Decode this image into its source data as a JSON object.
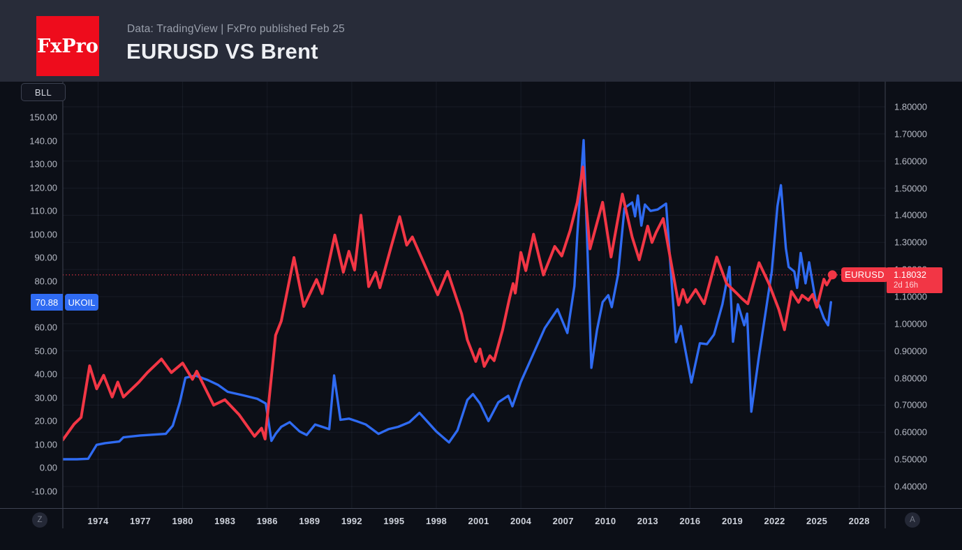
{
  "header": {
    "logo_text": "FxPro",
    "subtitle": "Data: TradingView | FxPro published Feb 25",
    "title": "EURUSD VS Brent"
  },
  "chart": {
    "unit_label": "BLL",
    "left_axis_ticks": [
      "150.00",
      "140.00",
      "130.00",
      "120.00",
      "110.00",
      "100.00",
      "90.00",
      "80.00",
      "70.00",
      "60.00",
      "50.00",
      "40.00",
      "30.00",
      "20.00",
      "10.00",
      "0.00",
      "-10.00"
    ],
    "right_axis_ticks": [
      "1.80000",
      "1.70000",
      "1.60000",
      "1.50000",
      "1.40000",
      "1.30000",
      "1.20000",
      "1.10000",
      "1.00000",
      "0.90000",
      "0.80000",
      "0.70000",
      "0.60000",
      "0.50000",
      "0.40000"
    ],
    "x_axis_ticks": [
      "1974",
      "1977",
      "1980",
      "1983",
      "1986",
      "1989",
      "1992",
      "1995",
      "1998",
      "2001",
      "2004",
      "2007",
      "2010",
      "2013",
      "2016",
      "2019",
      "2022",
      "2025",
      "2028"
    ],
    "price_badges": {
      "ukoil": {
        "value": "70.88",
        "label": "UKOIL",
        "color": "#2F6BF2"
      },
      "eurusd": {
        "label": "EURUSD",
        "value": "1.18032",
        "countdown": "2d 16h",
        "color": "#F23645"
      }
    },
    "zoom_button": "Z",
    "auto_button": "A",
    "colors": {
      "eurusd_red": "#F23645",
      "ukoil_blue": "#2F6BF2",
      "logo_red": "#EE0C1C"
    }
  },
  "chart_data": {
    "type": "line",
    "title": "EURUSD VS Brent",
    "legend_position": "none",
    "grid": {
      "horizontal_step_right_axis": 0.1,
      "vertical_years": [
        1974,
        1980,
        1986,
        1992,
        1998,
        2004,
        2010,
        2016,
        2022,
        2028
      ]
    },
    "x_axis": {
      "min": 1971.5,
      "max": 2029.85,
      "tick_years": [
        1974,
        1977,
        1980,
        1983,
        1986,
        1989,
        1992,
        1995,
        1998,
        2001,
        2004,
        2007,
        2010,
        2013,
        2016,
        2019,
        2022,
        2025,
        2028
      ]
    },
    "left_axis": {
      "label": "BLL",
      "min": -10,
      "max": 150,
      "tick_step": 10
    },
    "right_axis": {
      "min": 0.4,
      "max": 1.8,
      "tick_step": 0.1
    },
    "dotted_price_line": {
      "axis": "right",
      "value": 1.18032
    },
    "series": [
      {
        "name": "UKOIL",
        "axis": "left",
        "color": "#2F6BF2",
        "last_value": 70.88,
        "points": [
          [
            1971.5,
            3.6
          ],
          [
            1972.5,
            3.6
          ],
          [
            1973.3,
            3.8
          ],
          [
            1973.9,
            9.8
          ],
          [
            1974.5,
            10.5
          ],
          [
            1975.5,
            11.2
          ],
          [
            1975.8,
            13
          ],
          [
            1977,
            13.8
          ],
          [
            1978.8,
            14.5
          ],
          [
            1979.3,
            18
          ],
          [
            1979.8,
            28
          ],
          [
            1980.2,
            38.5
          ],
          [
            1980.9,
            39.5
          ],
          [
            1981.8,
            37.5
          ],
          [
            1982.5,
            35.5
          ],
          [
            1983.2,
            32.5
          ],
          [
            1984.3,
            31
          ],
          [
            1985.3,
            29.5
          ],
          [
            1985.9,
            27.5
          ],
          [
            1986.3,
            11.5
          ],
          [
            1986.6,
            14.5
          ],
          [
            1987,
            17.5
          ],
          [
            1987.6,
            19.5
          ],
          [
            1988.3,
            15.5
          ],
          [
            1988.8,
            14
          ],
          [
            1989.4,
            18.5
          ],
          [
            1989.9,
            17.5
          ],
          [
            1990.4,
            16.5
          ],
          [
            1990.75,
            39.5
          ],
          [
            1991.2,
            20.5
          ],
          [
            1991.8,
            21
          ],
          [
            1992.4,
            19.8
          ],
          [
            1993,
            18.5
          ],
          [
            1993.9,
            14.5
          ],
          [
            1994.6,
            16.5
          ],
          [
            1995.3,
            17.5
          ],
          [
            1996.1,
            19.5
          ],
          [
            1996.8,
            23.5
          ],
          [
            1997.4,
            19.5
          ],
          [
            1998,
            15.5
          ],
          [
            1998.9,
            10.8
          ],
          [
            1999.5,
            16
          ],
          [
            2000.2,
            29
          ],
          [
            2000.6,
            31.5
          ],
          [
            2001.1,
            27.5
          ],
          [
            2001.7,
            20
          ],
          [
            2002.4,
            28
          ],
          [
            2003.1,
            30.8
          ],
          [
            2003.4,
            26.3
          ],
          [
            2004,
            36.8
          ],
          [
            2004.6,
            44.9
          ],
          [
            2005.1,
            51.7
          ],
          [
            2005.7,
            59.8
          ],
          [
            2006.6,
            67.9
          ],
          [
            2007.3,
            57.7
          ],
          [
            2007.8,
            77.8
          ],
          [
            2008,
            99.6
          ],
          [
            2008.45,
            140.3
          ],
          [
            2008.7,
            98
          ],
          [
            2009,
            42.8
          ],
          [
            2009.4,
            58.9
          ],
          [
            2009.8,
            70.9
          ],
          [
            2010.2,
            73.9
          ],
          [
            2010.45,
            68.8
          ],
          [
            2010.9,
            82.8
          ],
          [
            2011.35,
            111.2
          ],
          [
            2011.9,
            113.6
          ],
          [
            2012.1,
            107.7
          ],
          [
            2012.3,
            116.6
          ],
          [
            2012.55,
            103.7
          ],
          [
            2012.8,
            112.7
          ],
          [
            2013.2,
            110
          ],
          [
            2013.7,
            110.6
          ],
          [
            2014.3,
            113.1
          ],
          [
            2015,
            53.8
          ],
          [
            2015.35,
            60.7
          ],
          [
            2016.1,
            36.5
          ],
          [
            2016.7,
            53.3
          ],
          [
            2017.2,
            52.9
          ],
          [
            2017.7,
            57
          ],
          [
            2018.3,
            70
          ],
          [
            2018.8,
            86
          ],
          [
            2019.05,
            54
          ],
          [
            2019.4,
            70
          ],
          [
            2019.85,
            61
          ],
          [
            2020.05,
            66
          ],
          [
            2020.35,
            24
          ],
          [
            2020.9,
            48
          ],
          [
            2021.5,
            72
          ],
          [
            2021.8,
            84
          ],
          [
            2022.2,
            112
          ],
          [
            2022.45,
            121
          ],
          [
            2022.8,
            94
          ],
          [
            2023,
            86
          ],
          [
            2023.4,
            84
          ],
          [
            2023.6,
            77
          ],
          [
            2023.85,
            92
          ],
          [
            2024.2,
            79
          ],
          [
            2024.45,
            88
          ],
          [
            2024.9,
            72
          ],
          [
            2025.2,
            69
          ],
          [
            2025.5,
            64
          ],
          [
            2025.8,
            61
          ],
          [
            2026,
            70.88
          ]
        ]
      },
      {
        "name": "EURUSD",
        "axis": "right",
        "color": "#F23645",
        "last_value": 1.18032,
        "end_dot": true,
        "points": [
          [
            1971.5,
            0.572
          ],
          [
            1972.3,
            0.63
          ],
          [
            1972.8,
            0.655
          ],
          [
            1973.4,
            0.845
          ],
          [
            1973.9,
            0.76
          ],
          [
            1974.4,
            0.81
          ],
          [
            1975,
            0.73
          ],
          [
            1975.4,
            0.785
          ],
          [
            1975.8,
            0.73
          ],
          [
            1976.9,
            0.785
          ],
          [
            1977.5,
            0.82
          ],
          [
            1978.5,
            0.87
          ],
          [
            1979.2,
            0.82
          ],
          [
            1980,
            0.855
          ],
          [
            1980.7,
            0.795
          ],
          [
            1981,
            0.825
          ],
          [
            1982.2,
            0.7
          ],
          [
            1983,
            0.72
          ],
          [
            1984,
            0.665
          ],
          [
            1985.1,
            0.585
          ],
          [
            1985.6,
            0.615
          ],
          [
            1985.85,
            0.575
          ],
          [
            1986.6,
            0.958
          ],
          [
            1987,
            1.01
          ],
          [
            1987.9,
            1.244
          ],
          [
            1988.6,
            1.064
          ],
          [
            1989.5,
            1.163
          ],
          [
            1989.9,
            1.111
          ],
          [
            1990.8,
            1.327
          ],
          [
            1991.4,
            1.19
          ],
          [
            1991.8,
            1.267
          ],
          [
            1992.2,
            1.198
          ],
          [
            1992.65,
            1.4
          ],
          [
            1993.2,
            1.137
          ],
          [
            1993.7,
            1.19
          ],
          [
            1994,
            1.133
          ],
          [
            1994.8,
            1.285
          ],
          [
            1995.4,
            1.395
          ],
          [
            1995.9,
            1.29
          ],
          [
            1996.3,
            1.32
          ],
          [
            1997.4,
            1.19
          ],
          [
            1998.1,
            1.107
          ],
          [
            1998.8,
            1.193
          ],
          [
            1999.8,
            1.036
          ],
          [
            2000.2,
            0.941
          ],
          [
            2000.8,
            0.861
          ],
          [
            2001.1,
            0.907
          ],
          [
            2001.4,
            0.843
          ],
          [
            2001.8,
            0.882
          ],
          [
            2002.1,
            0.864
          ],
          [
            2002.7,
            0.977
          ],
          [
            2003.2,
            1.096
          ],
          [
            2003.45,
            1.148
          ],
          [
            2003.6,
            1.113
          ],
          [
            2004,
            1.263
          ],
          [
            2004.35,
            1.196
          ],
          [
            2004.9,
            1.33
          ],
          [
            2005.6,
            1.18
          ],
          [
            2006.4,
            1.285
          ],
          [
            2006.9,
            1.25
          ],
          [
            2007.5,
            1.345
          ],
          [
            2008,
            1.448
          ],
          [
            2008.4,
            1.578
          ],
          [
            2008.9,
            1.276
          ],
          [
            2009.8,
            1.448
          ],
          [
            2010.4,
            1.246
          ],
          [
            2011.2,
            1.478
          ],
          [
            2011.9,
            1.319
          ],
          [
            2012.4,
            1.236
          ],
          [
            2013,
            1.36
          ],
          [
            2013.3,
            1.3
          ],
          [
            2013.6,
            1.337
          ],
          [
            2014.1,
            1.388
          ],
          [
            2015.2,
            1.069
          ],
          [
            2015.5,
            1.126
          ],
          [
            2015.8,
            1.079
          ],
          [
            2016.4,
            1.126
          ],
          [
            2017,
            1.074
          ],
          [
            2017.9,
            1.246
          ],
          [
            2018.6,
            1.148
          ],
          [
            2019.3,
            1.113
          ],
          [
            2019.7,
            1.092
          ],
          [
            2020.1,
            1.074
          ],
          [
            2020.9,
            1.225
          ],
          [
            2021.6,
            1.148
          ],
          [
            2022.3,
            1.053
          ],
          [
            2022.7,
            0.978
          ],
          [
            2023.2,
            1.119
          ],
          [
            2023.7,
            1.079
          ],
          [
            2023.95,
            1.105
          ],
          [
            2024.4,
            1.087
          ],
          [
            2024.7,
            1.108
          ],
          [
            2025,
            1.061
          ],
          [
            2025.5,
            1.164
          ],
          [
            2025.7,
            1.143
          ],
          [
            2026.1,
            1.18032
          ]
        ]
      }
    ]
  }
}
